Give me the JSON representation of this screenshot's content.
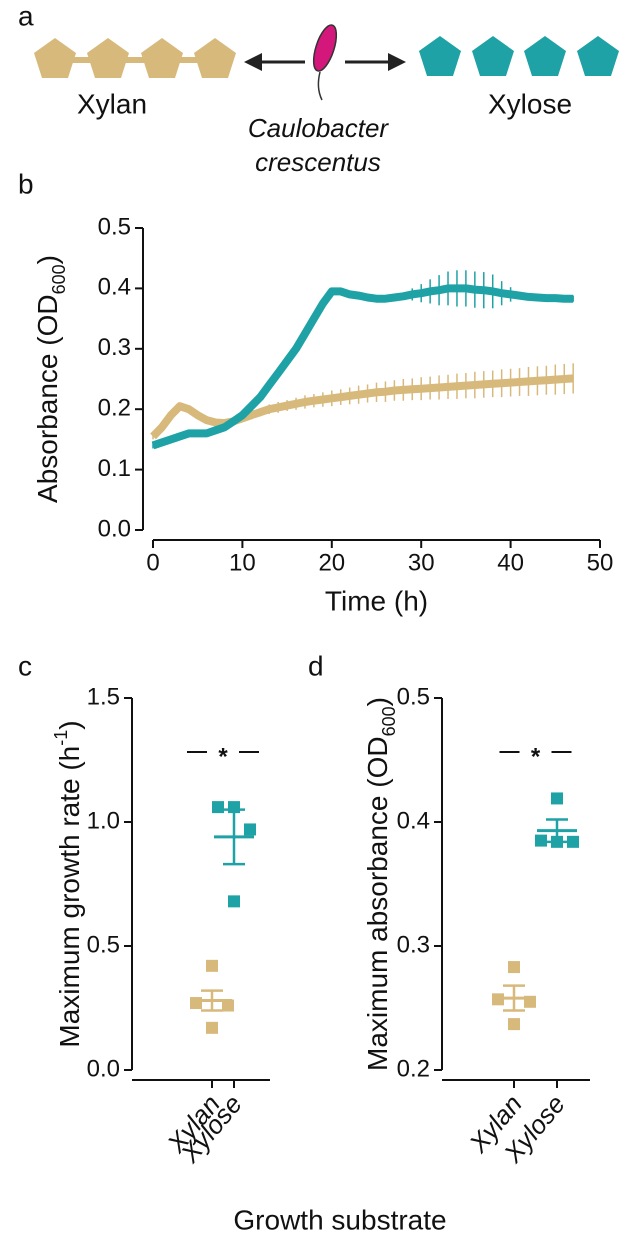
{
  "diagram": {
    "panel": "a",
    "left": "Xylan",
    "right": "Xylose",
    "organism": [
      "Caulobacter",
      "crescentus"
    ]
  },
  "common_xlabel": "Growth substrate",
  "chart_data": [
    {
      "type": "line",
      "panel": "b",
      "xlabel": "Time (h)",
      "ylabel": [
        "Absorbance (OD",
        "600",
        ")"
      ],
      "x": [
        0,
        1,
        2,
        3,
        4,
        5,
        6,
        7,
        8,
        9,
        10,
        11,
        12,
        13,
        14,
        15,
        16,
        17,
        18,
        19,
        20,
        21,
        22,
        23,
        24,
        25,
        26,
        27,
        28,
        29,
        30,
        31,
        32,
        33,
        34,
        35,
        36,
        37,
        38,
        39,
        40,
        41,
        42,
        43,
        44,
        45,
        46,
        47
      ],
      "series": [
        {
          "color": "#d7b97c",
          "values": [
            0.155,
            0.17,
            0.19,
            0.205,
            0.2,
            0.19,
            0.182,
            0.178,
            0.177,
            0.18,
            0.185,
            0.19,
            0.195,
            0.2,
            0.203,
            0.206,
            0.209,
            0.212,
            0.214,
            0.216,
            0.218,
            0.22,
            0.222,
            0.224,
            0.226,
            0.228,
            0.229,
            0.231,
            0.232,
            0.233,
            0.234,
            0.235,
            0.236,
            0.237,
            0.238,
            0.239,
            0.24,
            0.241,
            0.242,
            0.243,
            0.244,
            0.245,
            0.246,
            0.247,
            0.248,
            0.249,
            0.25,
            0.251
          ],
          "errors": [
            0.005,
            0.005,
            0.005,
            0.005,
            0.005,
            0.005,
            0.005,
            0.005,
            0.005,
            0.005,
            0.006,
            0.007,
            0.007,
            0.008,
            0.009,
            0.009,
            0.01,
            0.011,
            0.011,
            0.012,
            0.013,
            0.013,
            0.014,
            0.015,
            0.015,
            0.016,
            0.017,
            0.017,
            0.018,
            0.018,
            0.019,
            0.019,
            0.02,
            0.02,
            0.021,
            0.021,
            0.022,
            0.022,
            0.022,
            0.023,
            0.023,
            0.023,
            0.024,
            0.024,
            0.024,
            0.025,
            0.025,
            0.025
          ]
        },
        {
          "color": "#1ea2a6",
          "values": [
            0.14,
            0.145,
            0.15,
            0.155,
            0.16,
            0.16,
            0.16,
            0.165,
            0.17,
            0.18,
            0.19,
            0.205,
            0.22,
            0.24,
            0.26,
            0.28,
            0.3,
            0.325,
            0.35,
            0.375,
            0.395,
            0.395,
            0.39,
            0.388,
            0.385,
            0.383,
            0.383,
            0.385,
            0.387,
            0.39,
            0.392,
            0.395,
            0.397,
            0.4,
            0.4,
            0.4,
            0.398,
            0.397,
            0.395,
            0.392,
            0.39,
            0.388,
            0.386,
            0.385,
            0.384,
            0.384,
            0.383,
            0.383
          ],
          "errors": [
            0.005,
            0.005,
            0.005,
            0.005,
            0.005,
            0.005,
            0.005,
            0.005,
            0.005,
            0.005,
            0.005,
            0.005,
            0.005,
            0.005,
            0.005,
            0.005,
            0.005,
            0.005,
            0.005,
            0.005,
            0.005,
            0.005,
            0.005,
            0.005,
            0.005,
            0.005,
            0.005,
            0.005,
            0.005,
            0.01,
            0.015,
            0.02,
            0.025,
            0.028,
            0.03,
            0.03,
            0.03,
            0.03,
            0.028,
            0.02,
            0.012,
            0.005,
            0.005,
            0.005,
            0.005,
            0.005,
            0.005,
            0.005
          ]
        }
      ],
      "xlim": [
        0,
        50
      ],
      "xticks": [
        0,
        10,
        20,
        30,
        40,
        50
      ],
      "ylim": [
        0,
        0.5
      ],
      "yticks": [
        {
          "value": 0,
          "label": "0.0"
        },
        0.1,
        0.2,
        0.3,
        0.4,
        0.5
      ]
    },
    {
      "type": "dotplot",
      "panel": "c",
      "ylabel": [
        "Maximum growth rate (h",
        "-1",
        ")"
      ],
      "annotation": "*",
      "categories": [
        "Xylan",
        "Xylose"
      ],
      "colors": [
        "#d7b97c",
        "#1ea2a6"
      ],
      "values": [
        [
          0.42,
          0.27,
          0.26,
          0.17
        ],
        [
          1.06,
          1.06,
          0.97,
          0.68
        ]
      ],
      "mean": [
        0.28,
        0.94
      ],
      "sem": [
        0.04,
        0.11
      ],
      "ylim": [
        0,
        1.5
      ],
      "yticks": [
        {
          "value": 0,
          "label": "0.0"
        },
        0.5,
        {
          "value": 1,
          "label": "1.0"
        },
        1.5
      ]
    },
    {
      "type": "dotplot",
      "panel": "d",
      "ylabel": [
        "Maximum absorbance (OD",
        "600",
        ")"
      ],
      "annotation": "*",
      "categories": [
        "Xylan",
        "Xylose"
      ],
      "colors": [
        "#d7b97c",
        "#1ea2a6"
      ],
      "values": [
        [
          0.283,
          0.257,
          0.255,
          0.237
        ],
        [
          0.419,
          0.385,
          0.384,
          0.384
        ]
      ],
      "mean": [
        0.258,
        0.393
      ],
      "sem": [
        0.01,
        0.009
      ],
      "ylim": [
        0.2,
        0.5
      ],
      "yticks": [
        0.2,
        0.3,
        0.4,
        0.5
      ]
    }
  ]
}
